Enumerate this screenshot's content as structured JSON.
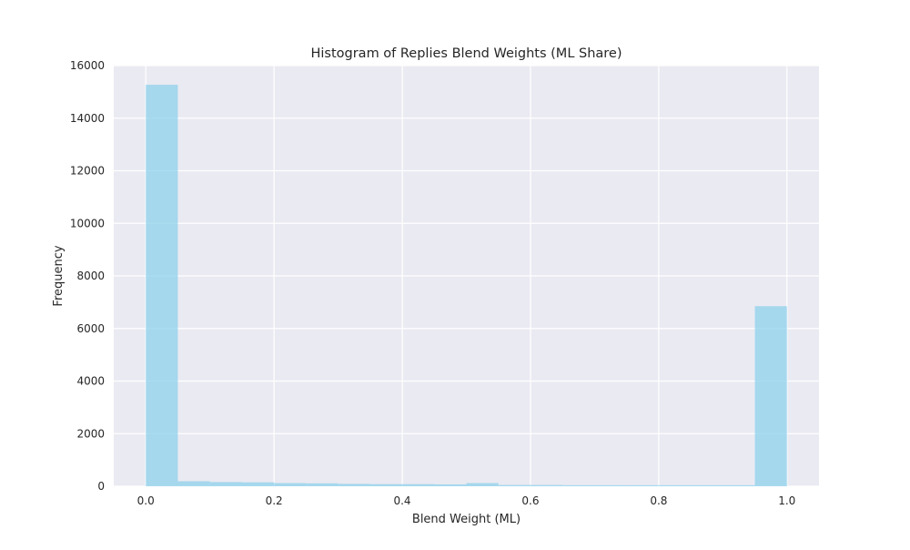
{
  "chart_data": {
    "type": "bar",
    "title": "Histogram of Replies Blend Weights (ML Share)",
    "xlabel": "Blend Weight (ML)",
    "ylabel": "Frequency",
    "xlim": [
      -0.05,
      1.05
    ],
    "ylim": [
      0,
      16000
    ],
    "xticks": [
      "0.0",
      "0.2",
      "0.4",
      "0.6",
      "0.8",
      "1.0"
    ],
    "yticks": [
      "0",
      "2000",
      "4000",
      "6000",
      "8000",
      "10000",
      "12000",
      "14000",
      "16000"
    ],
    "bin_width": 0.05,
    "bin_edges": [
      0.0,
      0.05,
      0.1,
      0.15,
      0.2,
      0.25,
      0.3,
      0.35,
      0.4,
      0.45,
      0.5,
      0.55,
      0.6,
      0.65,
      0.7,
      0.75,
      0.8,
      0.85,
      0.9,
      0.95,
      1.0
    ],
    "values": [
      15270,
      190,
      160,
      150,
      120,
      110,
      90,
      80,
      80,
      70,
      120,
      50,
      50,
      40,
      40,
      40,
      40,
      40,
      40,
      6850
    ],
    "bar_color": "#87ceeb",
    "bar_opacity": 0.7,
    "background_color": "#eaeaf2",
    "grid_color": "#ffffff",
    "grid": true,
    "legend": false
  }
}
